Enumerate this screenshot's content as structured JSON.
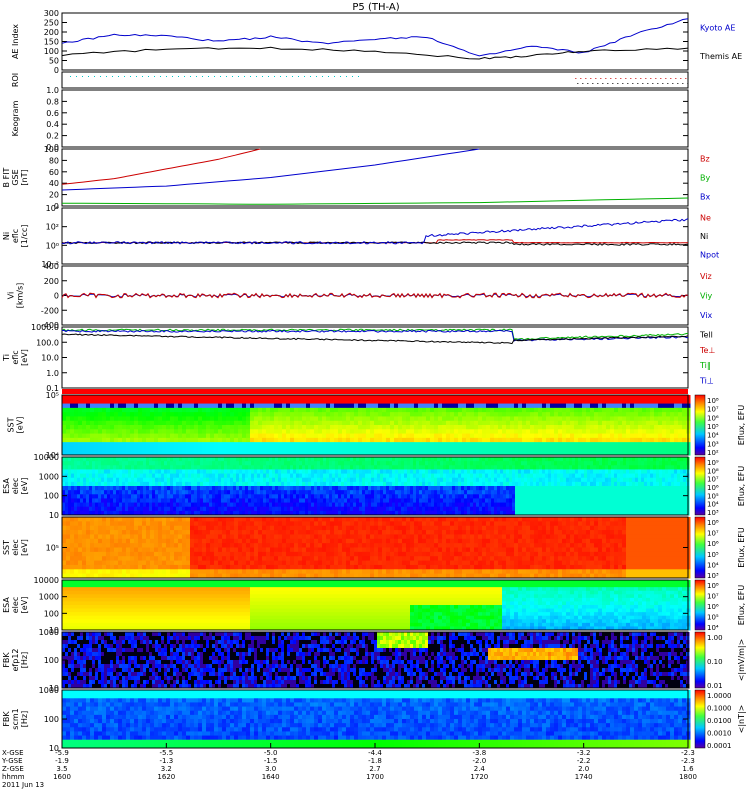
{
  "title": "P5 (TH-A)",
  "colors": {
    "red": "#cc0000",
    "green": "#00b000",
    "blue": "#0000cc",
    "black": "#000000",
    "cyan": "#00c8c8"
  },
  "panels": [
    {
      "id": "ae",
      "ylabel": [
        "AE Index"
      ],
      "ticks": [
        "300",
        "250",
        "200",
        "150",
        "100",
        "50",
        "0"
      ],
      "right_labels": [
        {
          "text": "Kyoto AE",
          "color": "blue"
        },
        {
          "text": "Themis AE",
          "color": "black"
        }
      ]
    },
    {
      "id": "roi",
      "ylabel": [
        "ROI"
      ],
      "ticks": [],
      "right_labels": []
    },
    {
      "id": "keogram",
      "ylabel": [
        "Keogram"
      ],
      "ticks": [
        "1.0",
        "0.8",
        "0.6",
        "0.4",
        "0.2",
        "0.0"
      ],
      "right_labels": []
    },
    {
      "id": "bfield",
      "ylabel": [
        "B FIT",
        "GSE",
        "[nT]"
      ],
      "ticks": [
        "100",
        "80",
        "60",
        "40",
        "20",
        "0"
      ],
      "right_labels": [
        {
          "text": "Bz",
          "color": "red"
        },
        {
          "text": "By",
          "color": "green"
        },
        {
          "text": "Bx",
          "color": "blue"
        }
      ]
    },
    {
      "id": "density",
      "ylabel": [
        "Ni",
        "eflc",
        "[1/cc]"
      ],
      "ticks": [
        "10⁴",
        "10²",
        "10⁰",
        "10⁻²"
      ],
      "right_labels": [
        {
          "text": "Ne",
          "color": "red"
        },
        {
          "text": "Ni",
          "color": "black"
        },
        {
          "text": "Npot",
          "color": "blue"
        }
      ]
    },
    {
      "id": "velocity",
      "ylabel": [
        "Vi",
        "[km/s]"
      ],
      "ticks": [
        "400",
        "200",
        "0",
        "-200",
        "-400"
      ],
      "right_labels": [
        {
          "text": "Viz",
          "color": "red"
        },
        {
          "text": "Viy",
          "color": "green"
        },
        {
          "text": "Vix",
          "color": "blue"
        }
      ]
    },
    {
      "id": "temperature",
      "ylabel": [
        "Ti",
        "eflc",
        "[eV]"
      ],
      "ticks": [
        "1000.0",
        "100.0",
        "10.0",
        "1.0",
        "0.1"
      ],
      "right_labels": [
        {
          "text": "Tell",
          "color": "black"
        },
        {
          "text": "Te⊥",
          "color": "red"
        },
        {
          "text": "Ti‖",
          "color": "green"
        },
        {
          "text": "Ti⊥",
          "color": "blue"
        }
      ]
    },
    {
      "id": "sst_e",
      "ylabel": [
        "SST",
        "[eV]"
      ],
      "ticks": [
        "10⁵",
        "10⁴"
      ],
      "cbar": [
        "10⁸",
        "10⁷",
        "10⁶",
        "10⁵",
        "10⁴",
        "10³",
        "10²"
      ],
      "cbar_label": "Eflux, EFU"
    },
    {
      "id": "esa_e",
      "ylabel": [
        "ESA",
        "elec",
        "[eV]"
      ],
      "ticks": [
        "10000",
        "1000",
        "100",
        "10"
      ],
      "cbar": [
        "10⁹",
        "10⁸",
        "10⁷",
        "10⁶",
        "10⁵",
        "10⁴",
        "10³"
      ],
      "cbar_label": "Eflux, EFU"
    },
    {
      "id": "sst_i",
      "ylabel": [
        "SST",
        "elec",
        "[eV]"
      ],
      "ticks": [
        "10⁵"
      ],
      "cbar": [
        "10⁸",
        "10⁷",
        "10⁶",
        "10⁵",
        "10⁴",
        "10³"
      ],
      "cbar_label": "Eflux, EFU"
    },
    {
      "id": "esa_i",
      "ylabel": [
        "ESA",
        "elec",
        "[eV]"
      ],
      "ticks": [
        "10000",
        "1000",
        "100",
        "10"
      ],
      "cbar": [
        "10⁸",
        "10⁷",
        "10⁶",
        "10⁵",
        "10⁴"
      ],
      "cbar_label": "Eflux, EFU"
    },
    {
      "id": "fbk1",
      "ylabel": [
        "FBK",
        "efp12",
        "[Hz]"
      ],
      "ticks": [
        "1000",
        "100",
        "10"
      ],
      "cbar": [
        "1.00",
        "0.10",
        "0.01"
      ],
      "cbar_label": "<|mV/m|>"
    },
    {
      "id": "fbk2",
      "ylabel": [
        "FBK",
        "scm1",
        "[Hz]"
      ],
      "ticks": [
        "1000",
        "100",
        "10"
      ],
      "cbar": [
        "1.0000",
        "0.1000",
        "0.0100",
        "0.0010",
        "0.0001"
      ],
      "cbar_label": "<|nT|>"
    }
  ],
  "x_axis": {
    "row_labels": [
      "X-GSE",
      "Y-GSE",
      "Z-GSE",
      "hhmm",
      "2011 Jun 13"
    ],
    "ticks": [
      {
        "x": "-5.9",
        "y": "-1.9",
        "z": "3.5",
        "t": "1600"
      },
      {
        "x": "-5.5",
        "y": "-1.3",
        "z": "3.2",
        "t": "1620"
      },
      {
        "x": "-5.0",
        "y": "-1.5",
        "z": "3.0",
        "t": "1640"
      },
      {
        "x": "-4.4",
        "y": "-1.8",
        "z": "2.7",
        "t": "1700"
      },
      {
        "x": "-3.8",
        "y": "-2.0",
        "z": "2.4",
        "t": "1720"
      },
      {
        "x": "-3.2",
        "y": "-2.2",
        "z": "2.0",
        "t": "1740"
      },
      {
        "x": "-2.3",
        "y": "-2.3",
        "z": "1.6",
        "t": "1800"
      }
    ]
  },
  "chart_data": {
    "type": "line",
    "title": "P5 (TH-A)",
    "x_range_hhmm": [
      "1600",
      "1800"
    ],
    "series": [
      {
        "name": "Kyoto AE",
        "panel": "ae",
        "color": "blue",
        "x_min": [
          0,
          10,
          20,
          30,
          40,
          50,
          60,
          70,
          80,
          90,
          100,
          110,
          120
        ],
        "values": [
          140,
          185,
          180,
          150,
          175,
          140,
          165,
          175,
          70,
          125,
          90,
          190,
          270
        ]
      },
      {
        "name": "Themis AE",
        "panel": "ae",
        "color": "black",
        "x_min": [
          0,
          20,
          40,
          60,
          80,
          90,
          100,
          120
        ],
        "values": [
          80,
          110,
          115,
          100,
          60,
          75,
          100,
          115
        ]
      },
      {
        "name": "Bz",
        "panel": "bfield",
        "color": "red",
        "x_min": [
          0,
          10,
          20,
          30,
          38
        ],
        "values": [
          38,
          48,
          65,
          82,
          100
        ]
      },
      {
        "name": "Bx",
        "panel": "bfield",
        "color": "blue",
        "x_min": [
          0,
          20,
          40,
          60,
          80
        ],
        "values": [
          28,
          35,
          50,
          72,
          100
        ]
      },
      {
        "name": "By",
        "panel": "bfield",
        "color": "green",
        "x_min": [
          0,
          40,
          80,
          120
        ],
        "values": [
          5,
          3,
          6,
          14
        ]
      }
    ]
  }
}
